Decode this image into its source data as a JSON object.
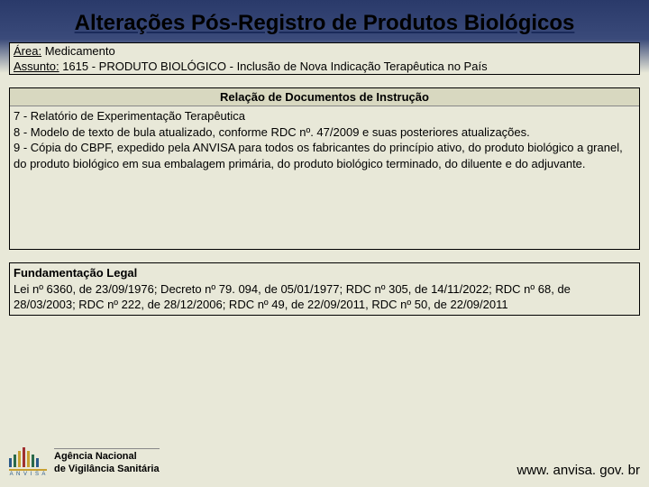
{
  "title": "Alterações Pós-Registro de Produtos Biológicos",
  "info": {
    "area_label": "Área:",
    "area_value": "  Medicamento",
    "assunto_label": "Assunto:",
    "assunto_value": "  1615 - PRODUTO BIOLÓGICO - Inclusão de Nova Indicação Terapêutica no País"
  },
  "docs": {
    "header": "Relação de Documentos de Instrução",
    "body": "7 - Relatório de Experimentação Terapêutica\n8 - Modelo de texto de bula atualizado, conforme RDC nº. 47/2009 e suas posteriores atualizações.\n9 - Cópia do CBPF, expedido pela ANVISA para todos os fabricantes do princípio ativo, do produto biológico a granel, do produto biológico em sua embalagem primária, do produto biológico terminado, do diluente e do adjuvante."
  },
  "legal": {
    "heading": "Fundamentação Legal",
    "body": "Lei nº 6360, de 23/09/1976; Decreto nº 79. 094, de 05/01/1977; RDC nº 305, de 14/11/2022; RDC nº 68, de 28/03/2003; RDC nº 222, de 28/12/2006; RDC nº 49, de 22/09/2011, RDC nº 50, de 22/09/2011"
  },
  "footer": {
    "agency_line1": "Agência Nacional",
    "agency_line2": "de Vigilância Sanitária",
    "logo_caption": "A N V I S A",
    "url": "www. anvisa. gov. br"
  },
  "colors": {
    "bg_top": "#2a3a6a",
    "bg_main": "#e8e8d8",
    "border": "#000000",
    "text": "#000000"
  }
}
